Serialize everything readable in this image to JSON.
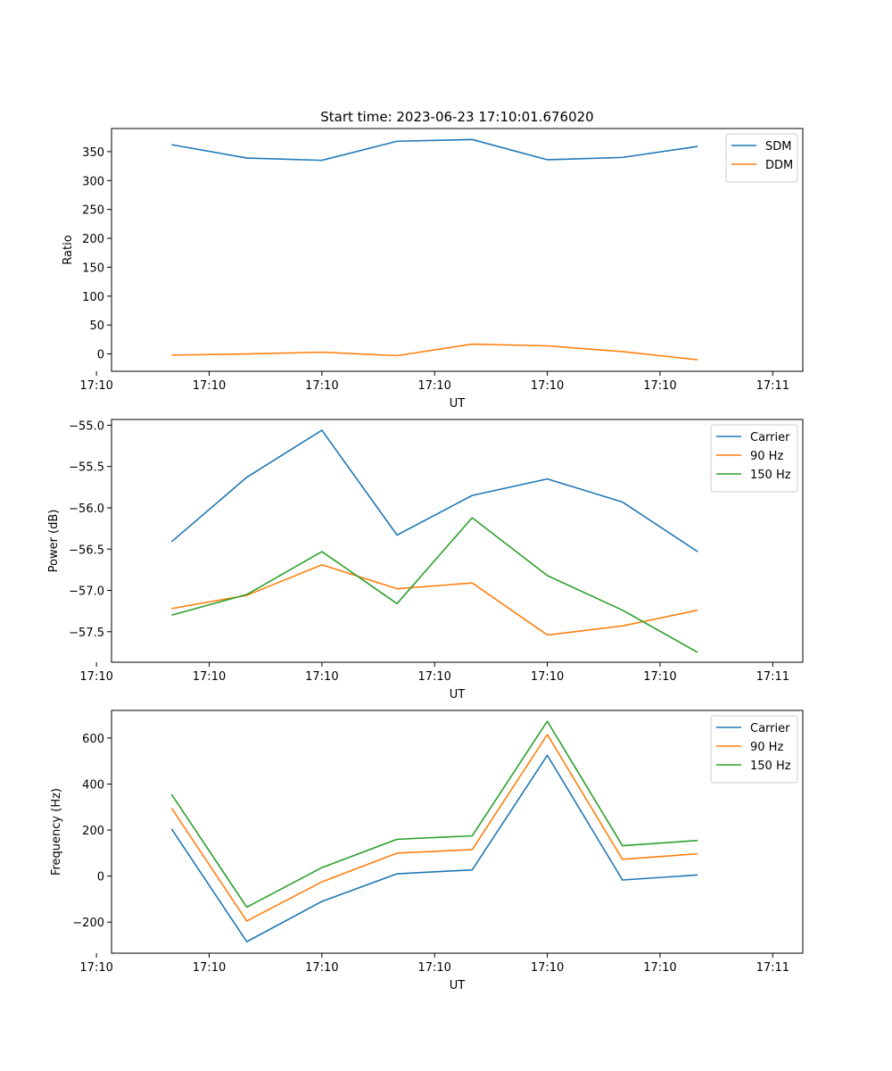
{
  "figure": {
    "title": "Start time: 2023-06-23 17:10:01.676020"
  },
  "colors": {
    "blue": "#1f77b4",
    "orange": "#ff7f0e",
    "green": "#2ca02c"
  },
  "chart_data": [
    {
      "type": "line",
      "title": "Start time: 2023-06-23 17:10:01.676020",
      "xlabel": "UT",
      "ylabel": "Ratio",
      "x": [
        1,
        2,
        3,
        4,
        5,
        6,
        7,
        8
      ],
      "xlim": [
        0.2,
        9.4
      ],
      "x_ticks": [
        {
          "pos": 0,
          "label": "17:10"
        },
        {
          "pos": 1.5,
          "label": "17:10"
        },
        {
          "pos": 3,
          "label": "17:10"
        },
        {
          "pos": 4.5,
          "label": "17:10"
        },
        {
          "pos": 6,
          "label": "17:10"
        },
        {
          "pos": 7.5,
          "label": "17:10"
        },
        {
          "pos": 9,
          "label": "17:11"
        }
      ],
      "ylim": [
        -30,
        390
      ],
      "y_ticks": [
        0,
        50,
        100,
        150,
        200,
        250,
        300,
        350
      ],
      "grid": false,
      "legend": "top-right",
      "series": [
        {
          "name": "SDM",
          "color": "#1f77b4",
          "values": [
            362,
            339,
            335,
            368,
            371,
            336,
            340,
            359
          ]
        },
        {
          "name": "DDM",
          "color": "#ff7f0e",
          "values": [
            -2,
            0,
            3,
            -3,
            17,
            14,
            4,
            -10
          ]
        }
      ]
    },
    {
      "type": "line",
      "title": "",
      "xlabel": "UT",
      "ylabel": "Power (dB)",
      "x": [
        1,
        2,
        3,
        4,
        5,
        6,
        7,
        8
      ],
      "xlim": [
        0.2,
        9.4
      ],
      "x_ticks": [
        {
          "pos": 0,
          "label": "17:10"
        },
        {
          "pos": 1.5,
          "label": "17:10"
        },
        {
          "pos": 3,
          "label": "17:10"
        },
        {
          "pos": 4.5,
          "label": "17:10"
        },
        {
          "pos": 6,
          "label": "17:10"
        },
        {
          "pos": 7.5,
          "label": "17:10"
        },
        {
          "pos": 9,
          "label": "17:11"
        }
      ],
      "ylim": [
        -57.87,
        -54.93
      ],
      "y_ticks": [
        -55.0,
        -55.5,
        -56.0,
        -56.5,
        -57.0,
        -57.5
      ],
      "grid": false,
      "legend": "top-right",
      "series": [
        {
          "name": "Carrier",
          "color": "#1f77b4",
          "values": [
            -56.41,
            -55.63,
            -55.06,
            -56.33,
            -55.85,
            -55.65,
            -55.93,
            -56.53
          ]
        },
        {
          "name": "90 Hz",
          "color": "#ff7f0e",
          "values": [
            -57.22,
            -57.06,
            -56.69,
            -56.98,
            -56.91,
            -57.54,
            -57.43,
            -57.24
          ]
        },
        {
          "name": "150 Hz",
          "color": "#2ca02c",
          "values": [
            -57.3,
            -57.05,
            -56.53,
            -57.16,
            -56.12,
            -56.82,
            -57.24,
            -57.75
          ]
        }
      ]
    },
    {
      "type": "line",
      "title": "",
      "xlabel": "UT",
      "ylabel": "Frequency (Hz)",
      "x": [
        1,
        2,
        3,
        4,
        5,
        6,
        7,
        8
      ],
      "xlim": [
        0.2,
        9.4
      ],
      "x_ticks": [
        {
          "pos": 0,
          "label": "17:10"
        },
        {
          "pos": 1.5,
          "label": "17:10"
        },
        {
          "pos": 3,
          "label": "17:10"
        },
        {
          "pos": 4.5,
          "label": "17:10"
        },
        {
          "pos": 6,
          "label": "17:10"
        },
        {
          "pos": 7.5,
          "label": "17:10"
        },
        {
          "pos": 9,
          "label": "17:11"
        }
      ],
      "ylim": [
        -335,
        720
      ],
      "y_ticks": [
        -200,
        0,
        200,
        400,
        600
      ],
      "grid": false,
      "legend": "top-right",
      "series": [
        {
          "name": "Carrier",
          "color": "#1f77b4",
          "values": [
            205,
            -285,
            -110,
            10,
            27,
            525,
            -17,
            5
          ]
        },
        {
          "name": "90 Hz",
          "color": "#ff7f0e",
          "values": [
            295,
            -195,
            -25,
            100,
            115,
            615,
            73,
            97
          ]
        },
        {
          "name": "150 Hz",
          "color": "#2ca02c",
          "values": [
            355,
            -135,
            37,
            160,
            175,
            673,
            132,
            155
          ]
        }
      ]
    }
  ]
}
